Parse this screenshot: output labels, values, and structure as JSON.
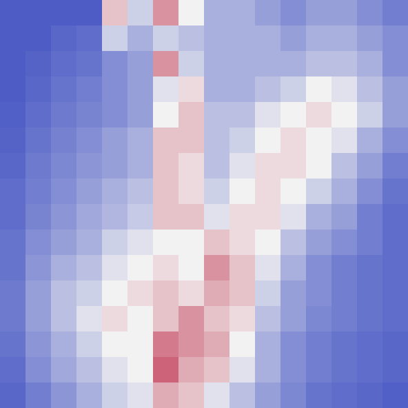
{
  "chart_data": {
    "type": "heatmap",
    "tick_labels": false,
    "color_stops": [
      0,
      0.5,
      1
    ],
    "colormap": [
      "#3b4cc0",
      "#f2f2f2",
      "#b40426"
    ],
    "cells": [
      [
        0.05,
        0.05,
        0.05,
        0.05,
        0.6,
        0.4,
        0.7,
        0.5,
        0.3,
        0.3,
        0.25,
        0.2,
        0.25,
        0.25,
        0.2,
        0.15
      ],
      [
        0.05,
        0.05,
        0.08,
        0.1,
        0.4,
        0.3,
        0.4,
        0.35,
        0.3,
        0.3,
        0.3,
        0.25,
        0.3,
        0.3,
        0.25,
        0.2
      ],
      [
        0.05,
        0.07,
        0.1,
        0.12,
        0.2,
        0.25,
        0.7,
        0.4,
        0.3,
        0.3,
        0.3,
        0.3,
        0.35,
        0.35,
        0.3,
        0.2
      ],
      [
        0.05,
        0.08,
        0.12,
        0.15,
        0.2,
        0.25,
        0.45,
        0.55,
        0.3,
        0.3,
        0.35,
        0.4,
        0.5,
        0.45,
        0.35,
        0.25
      ],
      [
        0.06,
        0.1,
        0.14,
        0.17,
        0.2,
        0.25,
        0.5,
        0.6,
        0.35,
        0.35,
        0.45,
        0.5,
        0.55,
        0.5,
        0.4,
        0.25
      ],
      [
        0.07,
        0.12,
        0.16,
        0.2,
        0.25,
        0.3,
        0.6,
        0.6,
        0.35,
        0.4,
        0.5,
        0.55,
        0.5,
        0.45,
        0.3,
        0.2
      ],
      [
        0.08,
        0.14,
        0.18,
        0.22,
        0.25,
        0.3,
        0.6,
        0.55,
        0.35,
        0.45,
        0.55,
        0.55,
        0.5,
        0.35,
        0.25,
        0.15
      ],
      [
        0.1,
        0.15,
        0.2,
        0.25,
        0.3,
        0.35,
        0.6,
        0.55,
        0.4,
        0.5,
        0.55,
        0.5,
        0.4,
        0.3,
        0.2,
        0.12
      ],
      [
        0.1,
        0.17,
        0.22,
        0.28,
        0.32,
        0.38,
        0.6,
        0.6,
        0.45,
        0.55,
        0.55,
        0.45,
        0.3,
        0.25,
        0.15,
        0.1
      ],
      [
        0.12,
        0.2,
        0.25,
        0.3,
        0.4,
        0.45,
        0.5,
        0.5,
        0.6,
        0.55,
        0.5,
        0.35,
        0.25,
        0.2,
        0.15,
        0.1
      ],
      [
        0.12,
        0.22,
        0.3,
        0.35,
        0.45,
        0.5,
        0.55,
        0.5,
        0.7,
        0.6,
        0.45,
        0.3,
        0.2,
        0.15,
        0.12,
        0.1
      ],
      [
        0.14,
        0.25,
        0.35,
        0.4,
        0.5,
        0.55,
        0.6,
        0.55,
        0.65,
        0.6,
        0.4,
        0.25,
        0.2,
        0.15,
        0.12,
        0.1
      ],
      [
        0.14,
        0.25,
        0.35,
        0.45,
        0.55,
        0.5,
        0.6,
        0.7,
        0.6,
        0.55,
        0.35,
        0.25,
        0.18,
        0.15,
        0.12,
        0.1
      ],
      [
        0.12,
        0.22,
        0.3,
        0.4,
        0.5,
        0.5,
        0.75,
        0.7,
        0.65,
        0.5,
        0.3,
        0.2,
        0.15,
        0.12,
        0.1,
        0.08
      ],
      [
        0.1,
        0.2,
        0.28,
        0.35,
        0.45,
        0.5,
        0.8,
        0.65,
        0.6,
        0.45,
        0.3,
        0.2,
        0.15,
        0.12,
        0.1,
        0.08
      ],
      [
        0.08,
        0.15,
        0.22,
        0.3,
        0.4,
        0.45,
        0.65,
        0.6,
        0.45,
        0.35,
        0.25,
        0.18,
        0.12,
        0.1,
        0.08,
        0.06
      ]
    ]
  }
}
